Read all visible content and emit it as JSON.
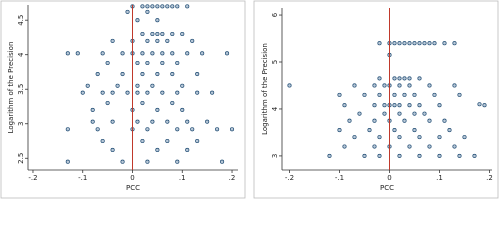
{
  "chart_data": [
    {
      "type": "scatter",
      "xlabel": "PCC",
      "ylabel": "Logarithm of the Precision",
      "xlim": [
        -0.21,
        0.212
      ],
      "ylim": [
        2.33,
        4.72
      ],
      "xticks": [
        {
          "value": -0.2,
          "label": "-.2"
        },
        {
          "value": -0.1,
          "label": "-.1"
        },
        0,
        {
          "value": 0.1,
          "label": ".1"
        },
        {
          "value": 0.2,
          "label": ".2"
        }
      ],
      "yticks": [
        2.5,
        3,
        3.5,
        4,
        4.5
      ],
      "color": "#1a476f",
      "vline": {
        "value": 0,
        "color": "#c0392b"
      },
      "x": [
        0.0,
        0.02,
        0.03,
        0.04,
        0.05,
        0.06,
        0.07,
        0.08,
        0.09,
        0.11,
        -0.01,
        0.03,
        0.01,
        0.05,
        0.02,
        0.04,
        0.05,
        0.06,
        0.08,
        0.1,
        -0.04,
        0.0,
        0.03,
        0.05,
        0.07,
        0.12,
        -0.13,
        -0.11,
        -0.06,
        -0.02,
        0.0,
        0.02,
        0.04,
        0.06,
        0.08,
        0.11,
        0.14,
        0.19,
        -0.05,
        0.01,
        0.03,
        0.06,
        0.09,
        -0.07,
        -0.02,
        0.02,
        0.05,
        0.08,
        0.13,
        -0.09,
        -0.03,
        0.01,
        0.04,
        0.1,
        -0.1,
        -0.06,
        -0.04,
        -0.01,
        0.01,
        0.03,
        0.06,
        0.09,
        0.13,
        0.16,
        -0.05,
        0.02,
        0.08,
        -0.08,
        0.0,
        0.05,
        0.1,
        -0.08,
        -0.04,
        0.01,
        0.04,
        0.07,
        0.11,
        0.15,
        -0.13,
        -0.07,
        0.0,
        0.03,
        0.09,
        0.12,
        0.17,
        0.2,
        -0.06,
        0.02,
        0.07,
        0.13,
        -0.04,
        0.05,
        0.11,
        -0.13,
        -0.02,
        0.03,
        0.09,
        0.18
      ],
      "y": [
        4.7,
        4.7,
        4.7,
        4.7,
        4.7,
        4.7,
        4.7,
        4.7,
        4.7,
        4.7,
        4.62,
        4.62,
        4.5,
        4.5,
        4.3,
        4.3,
        4.3,
        4.3,
        4.3,
        4.3,
        4.2,
        4.2,
        4.2,
        4.2,
        4.2,
        4.2,
        4.02,
        4.02,
        4.02,
        4.02,
        4.02,
        4.02,
        4.02,
        4.02,
        4.02,
        4.02,
        4.02,
        4.02,
        3.88,
        3.88,
        3.88,
        3.88,
        3.88,
        3.72,
        3.72,
        3.72,
        3.72,
        3.72,
        3.72,
        3.55,
        3.55,
        3.55,
        3.55,
        3.55,
        3.45,
        3.45,
        3.45,
        3.45,
        3.45,
        3.45,
        3.45,
        3.45,
        3.45,
        3.45,
        3.3,
        3.3,
        3.3,
        3.2,
        3.2,
        3.2,
        3.2,
        3.03,
        3.03,
        3.03,
        3.03,
        3.03,
        3.03,
        3.03,
        2.92,
        2.92,
        2.92,
        2.92,
        2.92,
        2.92,
        2.92,
        2.92,
        2.75,
        2.75,
        2.75,
        2.75,
        2.62,
        2.62,
        2.62,
        2.45,
        2.45,
        2.45,
        2.45,
        2.45
      ]
    },
    {
      "type": "scatter",
      "xlabel": "PCC",
      "ylabel": "Logarithm of the Precision",
      "xlim": [
        -0.215,
        0.205
      ],
      "ylim": [
        2.7,
        6.15
      ],
      "xticks": [
        {
          "value": -0.2,
          "label": "-.2"
        },
        {
          "value": -0.1,
          "label": "-.1"
        },
        0,
        {
          "value": 0.1,
          "label": ".1"
        },
        {
          "value": 0.2,
          "label": ".2"
        }
      ],
      "yticks": [
        3,
        4,
        5,
        6
      ],
      "color": "#1a476f",
      "vline": {
        "value": 0,
        "color": "#c0392b"
      },
      "x": [
        -0.02,
        0.0,
        0.01,
        0.02,
        0.03,
        0.04,
        0.05,
        0.06,
        0.07,
        0.08,
        0.09,
        0.11,
        0.13,
        0.0,
        -0.02,
        0.01,
        0.02,
        0.03,
        0.04,
        0.06,
        -0.2,
        -0.07,
        -0.03,
        -0.01,
        0.0,
        0.02,
        0.04,
        0.08,
        0.13,
        -0.1,
        -0.05,
        -0.02,
        0.01,
        0.03,
        0.05,
        0.09,
        0.14,
        -0.09,
        -0.03,
        -0.01,
        0.0,
        0.01,
        0.02,
        0.04,
        0.06,
        0.1,
        0.19,
        0.18,
        -0.06,
        -0.01,
        0.02,
        0.05,
        0.07,
        -0.08,
        -0.03,
        0.0,
        0.03,
        0.08,
        0.11,
        -0.1,
        -0.04,
        0.01,
        0.05,
        0.12,
        -0.07,
        -0.02,
        0.02,
        0.06,
        0.1,
        0.15,
        -0.09,
        -0.03,
        0.0,
        0.04,
        0.08,
        0.13,
        -0.12,
        -0.05,
        -0.02,
        0.02,
        0.06,
        0.1,
        0.14,
        0.17
      ],
      "y": [
        5.4,
        5.4,
        5.4,
        5.4,
        5.4,
        5.4,
        5.4,
        5.4,
        5.4,
        5.4,
        5.4,
        5.4,
        5.4,
        5.15,
        4.65,
        4.65,
        4.65,
        4.65,
        4.65,
        4.65,
        4.5,
        4.5,
        4.5,
        4.5,
        4.5,
        4.5,
        4.5,
        4.5,
        4.5,
        4.3,
        4.3,
        4.3,
        4.3,
        4.3,
        4.3,
        4.3,
        4.3,
        4.08,
        4.08,
        4.08,
        4.08,
        4.08,
        4.08,
        4.08,
        4.08,
        4.08,
        4.08,
        4.1,
        3.9,
        3.9,
        3.9,
        3.9,
        3.9,
        3.75,
        3.75,
        3.75,
        3.75,
        3.75,
        3.75,
        3.55,
        3.55,
        3.55,
        3.55,
        3.55,
        3.4,
        3.4,
        3.4,
        3.4,
        3.4,
        3.4,
        3.2,
        3.2,
        3.2,
        3.2,
        3.2,
        3.2,
        3.0,
        3.0,
        3.0,
        3.0,
        3.0,
        3.0,
        3.0,
        3.0
      ]
    }
  ]
}
